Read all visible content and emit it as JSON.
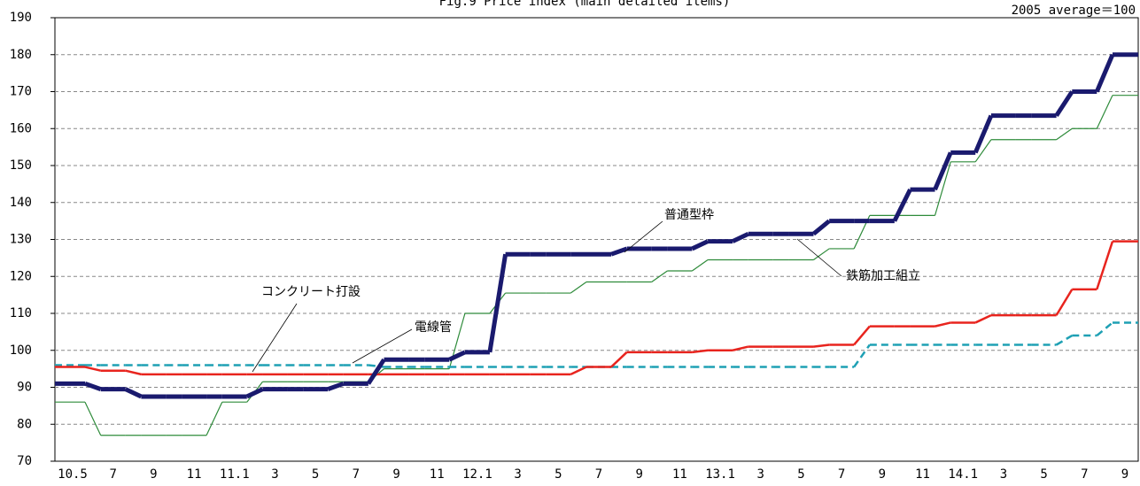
{
  "chart_data": {
    "type": "line",
    "title": "Fig.9 Price index (main detailed items)",
    "subtitle": "2005 average＝100",
    "categories": [
      "10.5",
      "7",
      "9",
      "11",
      "11.1",
      "3",
      "5",
      "7",
      "9",
      "11",
      "12.1",
      "3",
      "5",
      "7",
      "9",
      "11",
      "13.1",
      "3",
      "5",
      "7",
      "9",
      "11",
      "14.1",
      "3",
      "5",
      "7",
      "9"
    ],
    "ylim": [
      70,
      190
    ],
    "yticks": [
      70,
      80,
      90,
      100,
      110,
      120,
      130,
      140,
      150,
      160,
      170,
      180,
      190
    ],
    "grid": true,
    "series": [
      {
        "name": "鉄筋加工組立",
        "color": "#2e8b3a",
        "values": [
          86,
          77,
          77,
          77,
          86,
          91.5,
          91.5,
          91.5,
          95,
          95,
          110,
          115.5,
          115.5,
          118.5,
          118.5,
          121.5,
          124.5,
          124.5,
          124.5,
          127.5,
          136.5,
          136.5,
          151,
          157,
          157,
          160,
          169
        ]
      },
      {
        "name": "電線管",
        "color": "#1ea0b4",
        "values": [
          96,
          96,
          96,
          96,
          96,
          96,
          96,
          96,
          95.5,
          95.5,
          95.5,
          95.5,
          95.5,
          95.5,
          95.5,
          95.5,
          95.5,
          95.5,
          95.5,
          95.5,
          101.5,
          101.5,
          101.5,
          101.5,
          101.5,
          104,
          107.5
        ]
      },
      {
        "name": "コンクリート打設",
        "color": "#e8241e",
        "values": [
          95.5,
          94.5,
          93.5,
          93.5,
          93.5,
          93.5,
          93.5,
          93.5,
          93.5,
          93.5,
          93.5,
          93.5,
          93.5,
          95.5,
          99.5,
          99.5,
          100,
          101,
          101,
          101.5,
          106.5,
          106.5,
          107.5,
          109.5,
          109.5,
          116.5,
          129.5
        ]
      },
      {
        "name": "普通型枠",
        "color": "#1a1a6e",
        "values": [
          91,
          89.5,
          87.5,
          87.5,
          87.5,
          89.5,
          89.5,
          91,
          97.5,
          97.5,
          99.5,
          126,
          126,
          126,
          127.5,
          127.5,
          129.5,
          131.5,
          131.5,
          135,
          135,
          143.5,
          153.5,
          163.5,
          163.5,
          170,
          180
        ]
      }
    ]
  }
}
